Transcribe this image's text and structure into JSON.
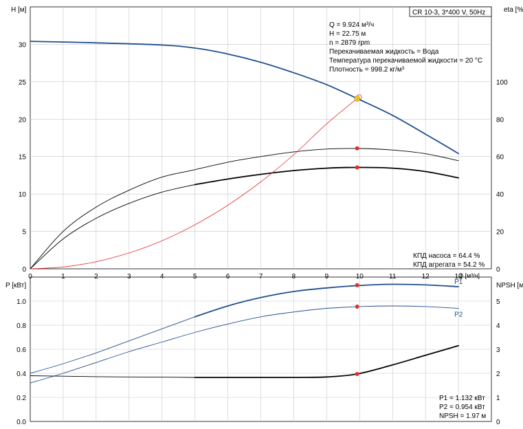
{
  "header": {
    "title": "CR 10-3, 3*400 V, 50Hz"
  },
  "info_top": [
    "Q = 9.924 м³/ч",
    "H = 22.75 м",
    "n = 2879 rpm",
    "Перекачиваемая жидкость = Вода",
    "Температура перекачиваемой жидкости = 20 °C",
    "Плотность = 998.2 кг/м³"
  ],
  "info_eff": [
    "КПД насоса = 64.4 %",
    "КПД агрегата = 54.2 %"
  ],
  "info_bottom": [
    "P1 = 1.132 кВт",
    "P2 = 0.954 кВт",
    "NPSH = 1.97 м"
  ],
  "colors": {
    "blue": "#1f4e8c",
    "red": "#e03030",
    "black": "#000000",
    "grid": "#c8c8c8",
    "opPoint": "#f0c020"
  },
  "chart_data": [
    {
      "type": "line",
      "xlabel": "Q [м³/ч]",
      "ylabel": "H [м]",
      "ylabel_right": "eta [%]",
      "xlim": [
        0,
        14
      ],
      "ylim": [
        0,
        35
      ],
      "ylim_right": [
        0,
        140
      ],
      "x_ticks": [
        "0",
        "1",
        "2",
        "3",
        "4",
        "5",
        "6",
        "7",
        "8",
        "9",
        "10",
        "11",
        "12",
        "13"
      ],
      "y_ticks": [
        "0",
        "5",
        "10",
        "15",
        "20",
        "25",
        "30"
      ],
      "y_ticks_right": [
        "0",
        "20",
        "40",
        "60",
        "80",
        "100"
      ],
      "operating_point": {
        "x": 9.924,
        "y": 22.75
      },
      "series": [
        {
          "axis": "left",
          "color": "blue",
          "width": 1.8,
          "x": [
            0,
            2,
            4,
            5,
            6,
            7,
            8,
            9,
            10,
            11,
            12,
            13
          ],
          "y": [
            30.4,
            30.2,
            29.9,
            29.5,
            28.7,
            27.6,
            26.2,
            24.6,
            22.6,
            20.5,
            18.0,
            15.4
          ]
        },
        {
          "axis": "right",
          "color": "black",
          "width": 0.9,
          "x": [
            0,
            1,
            2,
            3,
            4,
            5,
            6,
            7,
            8,
            9,
            10,
            11,
            12,
            13
          ],
          "y": [
            0,
            20,
            33,
            42,
            49,
            53,
            57,
            60,
            62.5,
            64,
            64.3,
            63.5,
            61.5,
            57.8
          ]
        },
        {
          "axis": "right",
          "color": "black",
          "width": 1.8,
          "x": [
            5,
            6,
            7,
            8,
            9,
            10,
            11,
            12,
            13
          ],
          "y": [
            45,
            48,
            50.5,
            52.5,
            53.8,
            54.2,
            53.8,
            52,
            48.6
          ]
        },
        {
          "axis": "right",
          "color": "black",
          "width": 0.9,
          "x": [
            0,
            1,
            2,
            3,
            4,
            5
          ],
          "y": [
            0,
            16,
            27,
            35,
            41,
            45
          ]
        },
        {
          "axis": "right",
          "color": "red",
          "width": 0.8,
          "x": [
            0,
            1,
            2,
            3,
            4,
            5,
            6,
            7,
            8,
            9,
            9.924
          ],
          "y": [
            0,
            1,
            3.8,
            8.5,
            15,
            23.5,
            34,
            46.5,
            61,
            77.5,
            91
          ]
        }
      ],
      "markers": [
        {
          "axis": "right",
          "x": 9.924,
          "y": 64.4,
          "color": "red"
        },
        {
          "axis": "right",
          "x": 9.924,
          "y": 54.2,
          "color": "red"
        }
      ]
    },
    {
      "type": "line",
      "xlabel": "",
      "ylabel": "P [кВт]",
      "ylabel_right": "NPSH [м]",
      "xlim": [
        0,
        14
      ],
      "ylim": [
        0,
        1.2
      ],
      "ylim_right": [
        0,
        6
      ],
      "y_ticks": [
        "0.0",
        "0.2",
        "0.4",
        "0.6",
        "0.8",
        "1.0"
      ],
      "y_ticks_right": [
        "0",
        "1",
        "2",
        "3",
        "4",
        "5"
      ],
      "series": [
        {
          "name": "P1",
          "axis": "left",
          "color": "blue",
          "width": 0.9,
          "x": [
            0,
            1,
            2,
            3,
            4,
            5
          ],
          "y": [
            0.4,
            0.48,
            0.57,
            0.67,
            0.77,
            0.87
          ]
        },
        {
          "name": "P1",
          "axis": "left",
          "color": "blue",
          "width": 1.8,
          "label": true,
          "x": [
            5,
            6,
            7,
            8,
            9,
            10,
            11,
            12,
            13
          ],
          "y": [
            0.87,
            0.96,
            1.03,
            1.08,
            1.11,
            1.13,
            1.14,
            1.135,
            1.12
          ]
        },
        {
          "name": "P2",
          "axis": "left",
          "color": "blue",
          "width": 0.9,
          "label": true,
          "x": [
            0,
            1,
            2,
            3,
            4,
            5,
            6,
            7,
            8,
            9,
            10,
            11,
            12,
            13
          ],
          "y": [
            0.32,
            0.4,
            0.49,
            0.58,
            0.66,
            0.74,
            0.81,
            0.87,
            0.91,
            0.94,
            0.955,
            0.96,
            0.955,
            0.94
          ]
        },
        {
          "axis": "right",
          "color": "black",
          "width": 0.9,
          "x": [
            0,
            1,
            2,
            3,
            4,
            5
          ],
          "y": [
            1.9,
            1.88,
            1.86,
            1.85,
            1.84,
            1.83
          ]
        },
        {
          "axis": "right",
          "color": "black",
          "width": 1.8,
          "x": [
            5,
            6,
            7,
            8,
            9,
            9.924,
            11,
            12,
            13
          ],
          "y": [
            1.83,
            1.83,
            1.83,
            1.83,
            1.85,
            1.97,
            2.35,
            2.75,
            3.15
          ]
        }
      ],
      "markers": [
        {
          "axis": "left",
          "x": 9.924,
          "y": 1.132,
          "color": "red"
        },
        {
          "axis": "left",
          "x": 9.924,
          "y": 0.954,
          "color": "red"
        },
        {
          "axis": "right",
          "x": 9.924,
          "y": 1.97,
          "color": "red"
        }
      ]
    }
  ]
}
